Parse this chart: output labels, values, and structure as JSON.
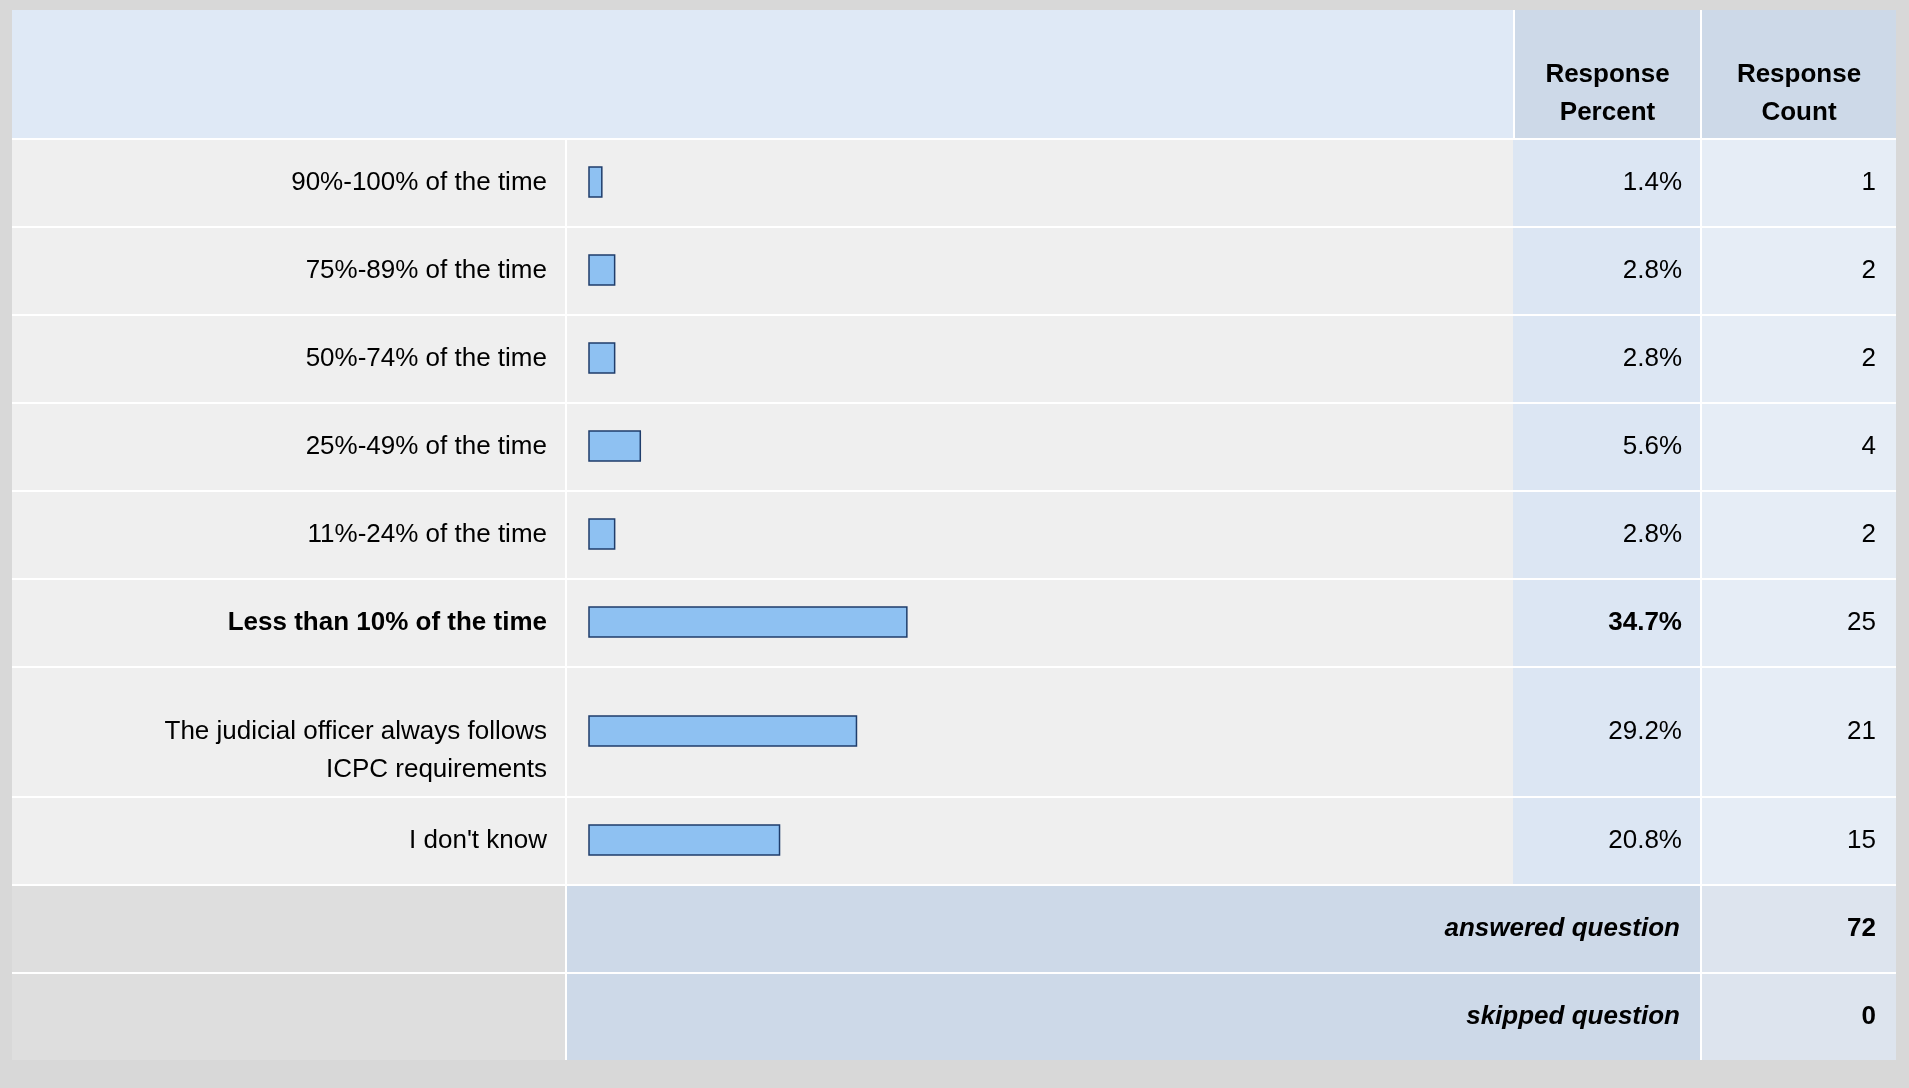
{
  "chart_data": {
    "type": "bar",
    "orientation": "horizontal",
    "categories": [
      "90%-100% of the time",
      "75%-89% of the time",
      "50%-74% of the time",
      "25%-49% of the time",
      "11%-24% of the time",
      "Less than 10% of the time",
      "The judicial officer always follows ICPC requirements",
      "I don't know"
    ],
    "values": [
      1.4,
      2.8,
      2.8,
      5.6,
      2.8,
      34.7,
      29.2,
      20.8
    ],
    "value_labels": [
      "1.4%",
      "2.8%",
      "2.8%",
      "5.6%",
      "2.8%",
      "34.7%",
      "29.2%",
      "20.8%"
    ],
    "color": "#8ec1f2",
    "annotations": [
      "Response Percent",
      "Response Count",
      "1",
      "2",
      "2",
      "4",
      "2",
      "25",
      "21",
      "15",
      "answered question",
      "72",
      "skipped question",
      "0"
    ]
  }
}
